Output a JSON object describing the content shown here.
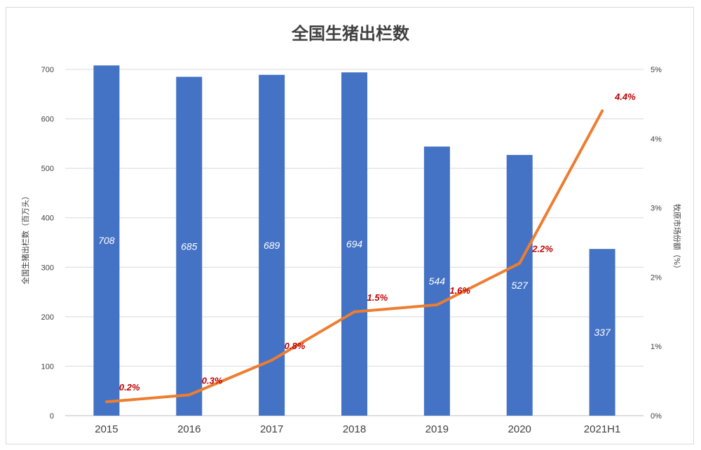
{
  "chart_data": {
    "type": "bar",
    "title": "全国生猪出栏数",
    "ylabel": "全国生猪出栏数（百万头）",
    "y2label": "牧原市场份额（%）",
    "categories": [
      "2015",
      "2016",
      "2017",
      "2018",
      "2019",
      "2020",
      "2021H1"
    ],
    "ylim": [
      0,
      700
    ],
    "yticks": [
      0,
      100,
      200,
      300,
      400,
      500,
      600,
      700
    ],
    "y2lim": [
      0,
      5
    ],
    "y2ticks": [
      "0%",
      "1%",
      "2%",
      "3%",
      "4%",
      "5%"
    ],
    "y2tick_values": [
      0,
      1,
      2,
      3,
      4,
      5
    ],
    "grid": true,
    "legend": "none",
    "series": [
      {
        "type": "bar",
        "axis": "left",
        "values": [
          708,
          685,
          689,
          694,
          544,
          527,
          337
        ],
        "labels": [
          "708",
          "685",
          "689",
          "694",
          "544",
          "527",
          "337"
        ],
        "color": "#4472c4"
      },
      {
        "type": "line",
        "axis": "right",
        "values": [
          0.2,
          0.3,
          0.8,
          1.5,
          1.6,
          2.2,
          4.4
        ],
        "labels": [
          "0.2%",
          "0.3%",
          "0.8%",
          "1.5%",
          "1.6%",
          "2.2%",
          "4.4%"
        ],
        "color": "#ed7d31",
        "label_color": "#c00000"
      }
    ]
  }
}
